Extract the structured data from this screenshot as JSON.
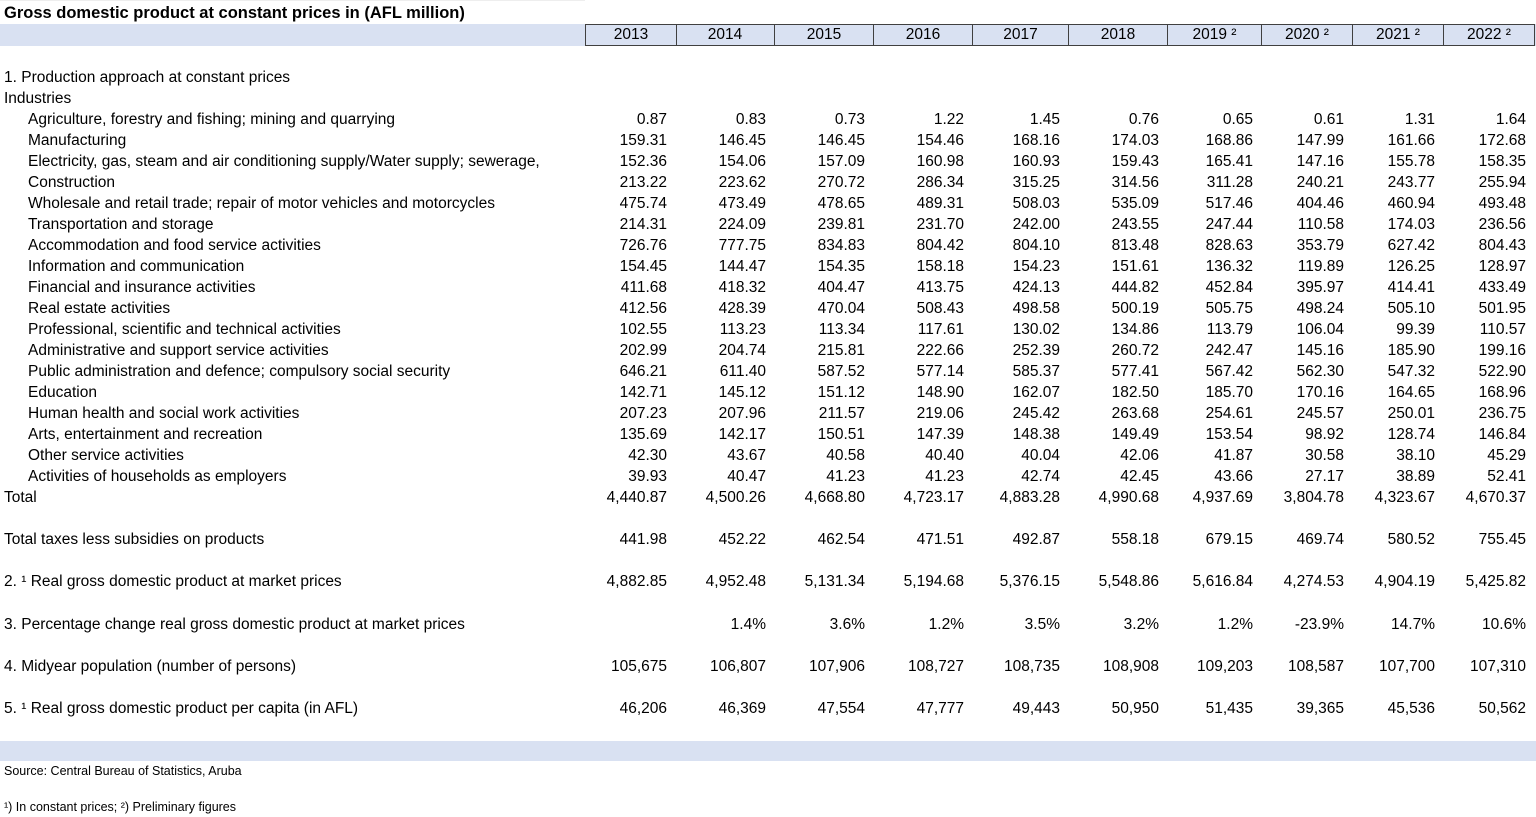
{
  "title": "Gross domestic product at constant prices in (AFL million)",
  "columns": [
    "2013",
    "2014",
    "2015",
    "2016",
    "2017",
    "2018",
    "2019 ²",
    "2020 ²",
    "2021 ²",
    "2022 ²"
  ],
  "section_1": {
    "heading": "1. Production approach at constant prices",
    "subheading": "Industries",
    "industries": [
      {
        "label": "Agriculture, forestry and fishing; mining and quarrying",
        "values": [
          "0.87",
          "0.83",
          "0.73",
          "1.22",
          "1.45",
          "0.76",
          "0.65",
          "0.61",
          "1.31",
          "1.64"
        ]
      },
      {
        "label": "Manufacturing",
        "values": [
          "159.31",
          "146.45",
          "146.45",
          "154.46",
          "168.16",
          "174.03",
          "168.86",
          "147.99",
          "161.66",
          "172.68"
        ]
      },
      {
        "label": "Electricity, gas, steam and air conditioning supply/Water supply; sewerage,",
        "values": [
          "152.36",
          "154.06",
          "157.09",
          "160.98",
          "160.93",
          "159.43",
          "165.41",
          "147.16",
          "155.78",
          "158.35"
        ]
      },
      {
        "label": "Construction",
        "values": [
          "213.22",
          "223.62",
          "270.72",
          "286.34",
          "315.25",
          "314.56",
          "311.28",
          "240.21",
          "243.77",
          "255.94"
        ]
      },
      {
        "label": "Wholesale and retail trade; repair of motor vehicles and motorcycles",
        "values": [
          "475.74",
          "473.49",
          "478.65",
          "489.31",
          "508.03",
          "535.09",
          "517.46",
          "404.46",
          "460.94",
          "493.48"
        ]
      },
      {
        "label": "Transportation and storage",
        "values": [
          "214.31",
          "224.09",
          "239.81",
          "231.70",
          "242.00",
          "243.55",
          "247.44",
          "110.58",
          "174.03",
          "236.56"
        ]
      },
      {
        "label": "Accommodation and food service activities",
        "values": [
          "726.76",
          "777.75",
          "834.83",
          "804.42",
          "804.10",
          "813.48",
          "828.63",
          "353.79",
          "627.42",
          "804.43"
        ]
      },
      {
        "label": "Information and communication",
        "values": [
          "154.45",
          "144.47",
          "154.35",
          "158.18",
          "154.23",
          "151.61",
          "136.32",
          "119.89",
          "126.25",
          "128.97"
        ]
      },
      {
        "label": "Financial and insurance activities",
        "values": [
          "411.68",
          "418.32",
          "404.47",
          "413.75",
          "424.13",
          "444.82",
          "452.84",
          "395.97",
          "414.41",
          "433.49"
        ]
      },
      {
        "label": "Real estate activities",
        "values": [
          "412.56",
          "428.39",
          "470.04",
          "508.43",
          "498.58",
          "500.19",
          "505.75",
          "498.24",
          "505.10",
          "501.95"
        ]
      },
      {
        "label": "Professional, scientific and technical activities",
        "values": [
          "102.55",
          "113.23",
          "113.34",
          "117.61",
          "130.02",
          "134.86",
          "113.79",
          "106.04",
          "99.39",
          "110.57"
        ]
      },
      {
        "label": "Administrative and support service activities",
        "values": [
          "202.99",
          "204.74",
          "215.81",
          "222.66",
          "252.39",
          "260.72",
          "242.47",
          "145.16",
          "185.90",
          "199.16"
        ]
      },
      {
        "label": "Public administration and defence; compulsory social security",
        "values": [
          "646.21",
          "611.40",
          "587.52",
          "577.14",
          "585.37",
          "577.41",
          "567.42",
          "562.30",
          "547.32",
          "522.90"
        ]
      },
      {
        "label": "Education",
        "values": [
          "142.71",
          "145.12",
          "151.12",
          "148.90",
          "162.07",
          "182.50",
          "185.70",
          "170.16",
          "164.65",
          "168.96"
        ]
      },
      {
        "label": "Human health and social work activities",
        "values": [
          "207.23",
          "207.96",
          "211.57",
          "219.06",
          "245.42",
          "263.68",
          "254.61",
          "245.57",
          "250.01",
          "236.75"
        ]
      },
      {
        "label": "Arts, entertainment and recreation",
        "values": [
          "135.69",
          "142.17",
          "150.51",
          "147.39",
          "148.38",
          "149.49",
          "153.54",
          "98.92",
          "128.74",
          "146.84"
        ]
      },
      {
        "label": "Other service activities",
        "values": [
          "42.30",
          "43.67",
          "40.58",
          "40.40",
          "40.04",
          "42.06",
          "41.87",
          "30.58",
          "38.10",
          "45.29"
        ]
      },
      {
        "label": "Activities of households as employers",
        "values": [
          "39.93",
          "40.47",
          "41.23",
          "41.23",
          "42.74",
          "42.45",
          "43.66",
          "27.17",
          "38.89",
          "52.41"
        ]
      }
    ],
    "total": {
      "label": "Total",
      "values": [
        "4,440.87",
        "4,500.26",
        "4,668.80",
        "4,723.17",
        "4,883.28",
        "4,990.68",
        "4,937.69",
        "3,804.78",
        "4,323.67",
        "4,670.37"
      ]
    }
  },
  "summary_rows": [
    {
      "label": "Total taxes less subsidies on products",
      "values": [
        "441.98",
        "452.22",
        "462.54",
        "471.51",
        "492.87",
        "558.18",
        "679.15",
        "469.74",
        "580.52",
        "755.45"
      ]
    },
    {
      "label": "2. ¹ Real gross domestic product at market prices",
      "values": [
        "4,882.85",
        "4,952.48",
        "5,131.34",
        "5,194.68",
        "5,376.15",
        "5,548.86",
        "5,616.84",
        "4,274.53",
        "4,904.19",
        "5,425.82"
      ]
    },
    {
      "label": "3. Percentage change real gross domestic product at market prices",
      "values": [
        null,
        "1.4%",
        "3.6%",
        "1.2%",
        "3.5%",
        "3.2%",
        "1.2%",
        "-23.9%",
        "14.7%",
        "10.6%"
      ]
    },
    {
      "label": "4. Midyear population (number of persons)",
      "values": [
        "105,675",
        "106,807",
        "107,906",
        "108,727",
        "108,735",
        "108,908",
        "109,203",
        "108,587",
        "107,700",
        "107,310"
      ]
    },
    {
      "label": "5. ¹ Real gross domestic product per capita (in AFL)",
      "values": [
        "46,206",
        "46,369",
        "47,554",
        "47,777",
        "49,443",
        "50,950",
        "51,435",
        "39,365",
        "45,536",
        "50,562"
      ]
    }
  ],
  "source": "Source: Central Bureau of Statistics, Aruba",
  "footnote": "¹) In constant prices; ²) Preliminary figures"
}
